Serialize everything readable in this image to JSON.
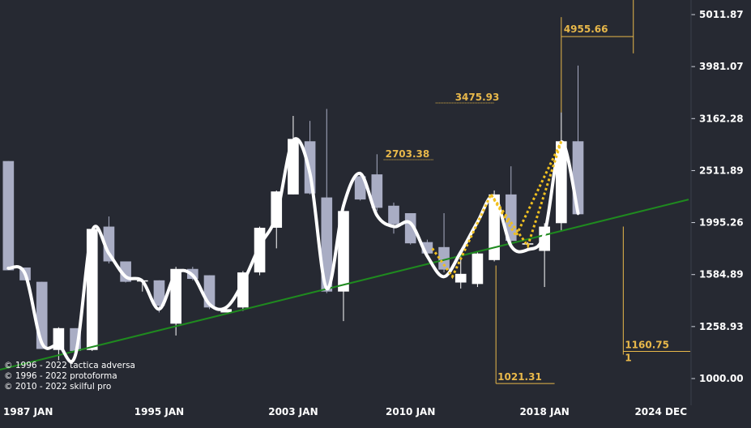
{
  "chart_data": {
    "type": "candlestick",
    "y_scale": "log",
    "ylim": [
      1000,
      5011.87
    ],
    "y_ticks": [
      {
        "value": 1000.0,
        "label": "1000.00"
      },
      {
        "value": 1258.93,
        "label": "1258.93"
      },
      {
        "value": 1584.89,
        "label": "1584.89"
      },
      {
        "value": 1995.26,
        "label": "1995.26"
      },
      {
        "value": 2511.89,
        "label": "2511.89"
      },
      {
        "value": 3162.28,
        "label": "3162.28"
      },
      {
        "value": 3981.07,
        "label": "3981.07"
      },
      {
        "value": 5011.87,
        "label": "5011.87"
      }
    ],
    "x_ticks": [
      {
        "year": 1987.0,
        "label": "1987 JAN"
      },
      {
        "year": 1995.0,
        "label": "1995 JAN"
      },
      {
        "year": 2003.0,
        "label": "2003 JAN"
      },
      {
        "year": 2010.0,
        "label": "2010 JAN"
      },
      {
        "year": 2018.0,
        "label": "2018 JAN"
      },
      {
        "year": 2024.92,
        "label": "2024 DEC"
      }
    ],
    "xlim": [
      1985.5,
      2026.6
    ],
    "candles": [
      {
        "year": 1986.0,
        "open": 2620,
        "high": 2620,
        "low": 1615,
        "close": 1615
      },
      {
        "year": 1987.0,
        "open": 1635,
        "high": 1635,
        "low": 1545,
        "close": 1545
      },
      {
        "year": 1988.0,
        "open": 1535,
        "high": 1535,
        "low": 1140,
        "close": 1140
      },
      {
        "year": 1989.0,
        "open": 1135,
        "high": 1255,
        "low": 1085,
        "close": 1250
      },
      {
        "year": 1990.0,
        "open": 1250,
        "high": 1250,
        "low": 1130,
        "close": 1130
      },
      {
        "year": 1991.0,
        "open": 1135,
        "high": 1950,
        "low": 1130,
        "close": 1940
      },
      {
        "year": 1992.0,
        "open": 1960,
        "high": 2050,
        "low": 1665,
        "close": 1680
      },
      {
        "year": 1993.0,
        "open": 1680,
        "high": 1680,
        "low": 1530,
        "close": 1535
      },
      {
        "year": 1994.0,
        "open": 1540,
        "high": 1550,
        "low": 1470,
        "close": 1545
      },
      {
        "year": 1995.0,
        "open": 1545,
        "high": 1545,
        "low": 1340,
        "close": 1380
      },
      {
        "year": 1996.0,
        "open": 1275,
        "high": 1640,
        "low": 1210,
        "close": 1625
      },
      {
        "year": 1997.0,
        "open": 1625,
        "high": 1640,
        "low": 1545,
        "close": 1555
      },
      {
        "year": 1998.0,
        "open": 1580,
        "high": 1580,
        "low": 1360,
        "close": 1370
      },
      {
        "year": 1999.0,
        "open": 1340,
        "high": 1370,
        "low": 1340,
        "close": 1360
      },
      {
        "year": 2000.0,
        "open": 1370,
        "high": 1610,
        "low": 1350,
        "close": 1600
      },
      {
        "year": 2001.0,
        "open": 1600,
        "high": 1960,
        "low": 1580,
        "close": 1950
      },
      {
        "year": 2002.0,
        "open": 1950,
        "high": 2300,
        "low": 1780,
        "close": 2290
      },
      {
        "year": 2003.0,
        "open": 2260,
        "high": 3200,
        "low": 2260,
        "close": 2890
      },
      {
        "year": 2004.0,
        "open": 2860,
        "high": 3130,
        "low": 2260,
        "close": 2270
      },
      {
        "year": 2005.0,
        "open": 2230,
        "high": 3300,
        "low": 1460,
        "close": 1470
      },
      {
        "year": 2006.0,
        "open": 1470,
        "high": 2120,
        "low": 1290,
        "close": 2100
      },
      {
        "year": 2007.0,
        "open": 2450,
        "high": 2500,
        "low": 2200,
        "close": 2210
      },
      {
        "year": 2008.0,
        "open": 2470,
        "high": 2700,
        "low": 2100,
        "close": 2130
      },
      {
        "year": 2009.0,
        "open": 2150,
        "high": 2180,
        "low": 1900,
        "close": 1980
      },
      {
        "year": 2010.0,
        "open": 2080,
        "high": 2060,
        "low": 1810,
        "close": 1820
      },
      {
        "year": 2011.0,
        "open": 1830,
        "high": 1850,
        "low": 1720,
        "close": 1740
      },
      {
        "year": 2012.0,
        "open": 1790,
        "high": 2080,
        "low": 1600,
        "close": 1620
      },
      {
        "year": 2013.0,
        "open": 1530,
        "high": 1750,
        "low": 1490,
        "close": 1590
      },
      {
        "year": 2014.0,
        "open": 1520,
        "high": 1760,
        "low": 1500,
        "close": 1740
      },
      {
        "year": 2015.0,
        "open": 1690,
        "high": 2300,
        "low": 1680,
        "close": 2260
      },
      {
        "year": 2016.0,
        "open": 2260,
        "high": 2560,
        "low": 1820,
        "close": 1840
      },
      {
        "year": 2017.0,
        "open": 1810,
        "high": 1830,
        "low": 1780,
        "close": 1820
      },
      {
        "year": 2018.0,
        "open": 1760,
        "high": 1990,
        "low": 1500,
        "close": 1960
      },
      {
        "year": 2019.0,
        "open": 1990,
        "high": 3250,
        "low": 1920,
        "close": 2860
      },
      {
        "year": 2020.0,
        "open": 2860,
        "high": 4000,
        "low": 2060,
        "close": 2070
      }
    ],
    "smooth_curve": [
      [
        1986.0,
        1630
      ],
      [
        1987.0,
        1590
      ],
      [
        1988.0,
        1170
      ],
      [
        1989.0,
        1160
      ],
      [
        1990.0,
        1110
      ],
      [
        1991.0,
        1920
      ],
      [
        1992.0,
        1740
      ],
      [
        1993.0,
        1570
      ],
      [
        1994.0,
        1540
      ],
      [
        1995.0,
        1360
      ],
      [
        1996.0,
        1590
      ],
      [
        1997.0,
        1580
      ],
      [
        1998.0,
        1390
      ],
      [
        1999.0,
        1370
      ],
      [
        2000.0,
        1530
      ],
      [
        2001.0,
        1800
      ],
      [
        2002.0,
        2060
      ],
      [
        2003.0,
        2870
      ],
      [
        2004.0,
        2480
      ],
      [
        2005.0,
        1490
      ],
      [
        2006.0,
        2150
      ],
      [
        2007.0,
        2480
      ],
      [
        2008.0,
        2060
      ],
      [
        2009.0,
        1960
      ],
      [
        2010.0,
        1990
      ],
      [
        2011.0,
        1720
      ],
      [
        2012.0,
        1570
      ],
      [
        2013.0,
        1750
      ],
      [
        2014.0,
        2000
      ],
      [
        2015.0,
        2240
      ],
      [
        2016.0,
        1800
      ],
      [
        2017.0,
        1770
      ],
      [
        2018.0,
        1900
      ],
      [
        2019.0,
        2850
      ],
      [
        2020.0,
        2080
      ]
    ],
    "trendline": {
      "start": [
        1985.5,
        1040
      ],
      "end": [
        2026.6,
        2210
      ],
      "color": "#1f8a1f"
    },
    "zigzag": {
      "color": "#f0c020",
      "points": [
        [
          2011.3,
          1780
        ],
        [
          2012.5,
          1570
        ],
        [
          2014.8,
          2260
        ],
        [
          2016.3,
          1880
        ],
        [
          2019.0,
          2860
        ]
      ],
      "second": [
        [
          2014.8,
          2260
        ],
        [
          2017.0,
          1800
        ],
        [
          2019.0,
          2860
        ]
      ]
    },
    "annotations": [
      {
        "label": "4955.66",
        "kind": "bracket",
        "year_start": 2019.0,
        "year_end": 2023.3,
        "value": 4955.66,
        "base": 3250
      },
      {
        "label": "3475.93",
        "kind": "dotted",
        "year_start": 2011.5,
        "year_end": 2015.0,
        "value": 3475.93
      },
      {
        "label": "2703.38",
        "kind": "dotted",
        "year_start": 2008.4,
        "year_end": 2011.4,
        "value": 2703.38
      },
      {
        "label": "1021.31",
        "kind": "drop",
        "year_start": 2015.1,
        "year_end": 2018.6,
        "value": 1021.31,
        "from": 1650
      },
      {
        "label": "1160.75",
        "kind": "drop",
        "year_start": 2022.7,
        "year_end": 2026.7,
        "value": 1160.75,
        "from": 1960,
        "sub": "1"
      }
    ],
    "colors": {
      "background": "#262932",
      "bull_candle": "#ffffff",
      "bear_candle": "#a9adc4",
      "curve": "#ffffff",
      "annotation": "#e8b84a",
      "axis_text": "#ffffff"
    }
  },
  "copyright": [
    "© 1996 - 2022 tactica adversa",
    "© 1996 - 2022 protoforma",
    "© 2010 - 2022 skilful pro"
  ]
}
